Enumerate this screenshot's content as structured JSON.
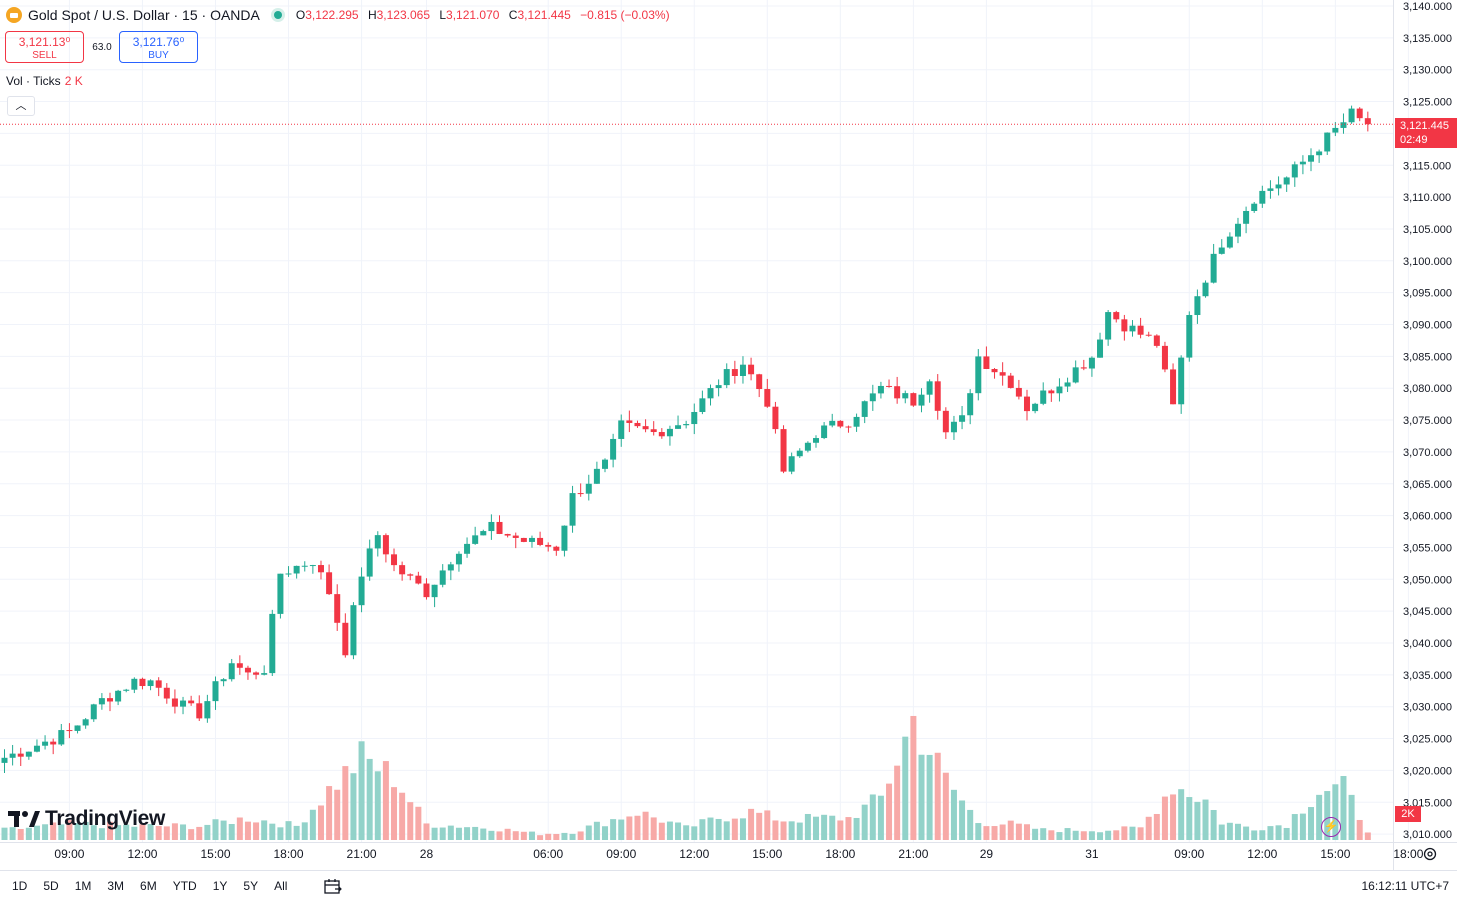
{
  "header": {
    "symbol": "Gold Spot / U.S. Dollar · 15 · OANDA",
    "ohlc": {
      "o_label": "O",
      "o": "3,122.295",
      "h_label": "H",
      "h": "3,123.065",
      "l_label": "L",
      "l": "3,121.070",
      "c_label": "C",
      "c": "3,121.445",
      "change": "−0.815 (−0.03%)"
    }
  },
  "trade": {
    "sell_price": "3,121.13⁰",
    "sell_label": "SELL",
    "spread": "63.0",
    "buy_price": "3,121.76⁰",
    "buy_label": "BUY"
  },
  "volume": {
    "label": "Vol · Ticks",
    "value": "2 K"
  },
  "price_badge": {
    "price": "3,121.445",
    "countdown": "02:49"
  },
  "volume_badge": "2K",
  "branding": "TradingView",
  "ranges": [
    "1D",
    "5D",
    "1M",
    "3M",
    "6M",
    "YTD",
    "1Y",
    "5Y",
    "All"
  ],
  "clock": "16:12:11 UTC+7",
  "colors": {
    "up": "#22ab94",
    "down": "#f23645",
    "up_vol": "#92d2c9",
    "down_vol": "#f7a9a7",
    "grid": "#f0f3fa"
  },
  "chart_data": {
    "type": "candlestick",
    "y_axis_labels": [
      "3,140.000",
      "3,135.000",
      "3,130.000",
      "3,125.000",
      "3,120.000",
      "3,115.000",
      "3,110.000",
      "3,105.000",
      "3,100.000",
      "3,095.000",
      "3,090.000",
      "3,085.000",
      "3,080.000",
      "3,075.000",
      "3,070.000",
      "3,065.000",
      "3,060.000",
      "3,055.000",
      "3,050.000",
      "3,045.000",
      "3,040.000",
      "3,035.000",
      "3,030.000",
      "3,025.000",
      "3,020.000",
      "3,015.000",
      "3,010.000"
    ],
    "ylim": [
      3010,
      3140
    ],
    "x_axis_labels": [
      "09:00",
      "12:00",
      "15:00",
      "18:00",
      "21:00",
      "28",
      "06:00",
      "09:00",
      "12:00",
      "15:00",
      "18:00",
      "21:00",
      "29",
      "31",
      "09:00",
      "12:00",
      "15:00",
      "18:00"
    ],
    "x_axis_label_bar_index": [
      8,
      17,
      26,
      35,
      44,
      52,
      67,
      76,
      85,
      94,
      103,
      112,
      121,
      134,
      146,
      155,
      164,
      173
    ],
    "last_price": 3121.445,
    "anchors": [
      [
        0,
        3022
      ],
      [
        4,
        3024
      ],
      [
        8,
        3026
      ],
      [
        12,
        3031
      ],
      [
        16,
        3034
      ],
      [
        18,
        3034
      ],
      [
        22,
        3030
      ],
      [
        24,
        3029
      ],
      [
        28,
        3037
      ],
      [
        30,
        3035
      ],
      [
        32,
        3036
      ],
      [
        34,
        3051
      ],
      [
        38,
        3053
      ],
      [
        40,
        3048
      ],
      [
        42,
        3039
      ],
      [
        44,
        3051
      ],
      [
        46,
        3057
      ],
      [
        48,
        3052
      ],
      [
        50,
        3050
      ],
      [
        52,
        3048
      ],
      [
        56,
        3055
      ],
      [
        60,
        3058
      ],
      [
        64,
        3056
      ],
      [
        68,
        3055
      ],
      [
        70,
        3063
      ],
      [
        74,
        3068
      ],
      [
        76,
        3074
      ],
      [
        80,
        3073
      ],
      [
        84,
        3075
      ],
      [
        88,
        3081
      ],
      [
        91,
        3084
      ],
      [
        94,
        3078
      ],
      [
        96,
        3067
      ],
      [
        100,
        3073
      ],
      [
        104,
        3075
      ],
      [
        108,
        3080
      ],
      [
        112,
        3078
      ],
      [
        114,
        3082
      ],
      [
        116,
        3073
      ],
      [
        118,
        3075
      ],
      [
        120,
        3085
      ],
      [
        124,
        3081
      ],
      [
        126,
        3077
      ],
      [
        130,
        3081
      ],
      [
        134,
        3085
      ],
      [
        136,
        3092
      ],
      [
        138,
        3090
      ],
      [
        142,
        3087
      ],
      [
        144,
        3077
      ],
      [
        146,
        3092
      ],
      [
        150,
        3103
      ],
      [
        154,
        3110
      ],
      [
        158,
        3113
      ],
      [
        162,
        3118
      ],
      [
        166,
        3123
      ],
      [
        168,
        3121
      ]
    ],
    "volume_anchors": [
      [
        0,
        10
      ],
      [
        8,
        16
      ],
      [
        16,
        14
      ],
      [
        24,
        14
      ],
      [
        30,
        22
      ],
      [
        36,
        14
      ],
      [
        40,
        50
      ],
      [
        44,
        82
      ],
      [
        48,
        63
      ],
      [
        52,
        16
      ],
      [
        60,
        12
      ],
      [
        66,
        6
      ],
      [
        70,
        8
      ],
      [
        74,
        18
      ],
      [
        78,
        28
      ],
      [
        84,
        12
      ],
      [
        88,
        22
      ],
      [
        92,
        28
      ],
      [
        96,
        20
      ],
      [
        100,
        22
      ],
      [
        104,
        22
      ],
      [
        108,
        42
      ],
      [
        112,
        120
      ],
      [
        116,
        60
      ],
      [
        120,
        18
      ],
      [
        124,
        16
      ],
      [
        128,
        10
      ],
      [
        136,
        10
      ],
      [
        140,
        12
      ],
      [
        144,
        55
      ],
      [
        148,
        40
      ],
      [
        150,
        18
      ],
      [
        154,
        12
      ],
      [
        158,
        16
      ],
      [
        162,
        50
      ],
      [
        165,
        52
      ],
      [
        168,
        10
      ]
    ],
    "vol_up_scale_note": ""
  }
}
